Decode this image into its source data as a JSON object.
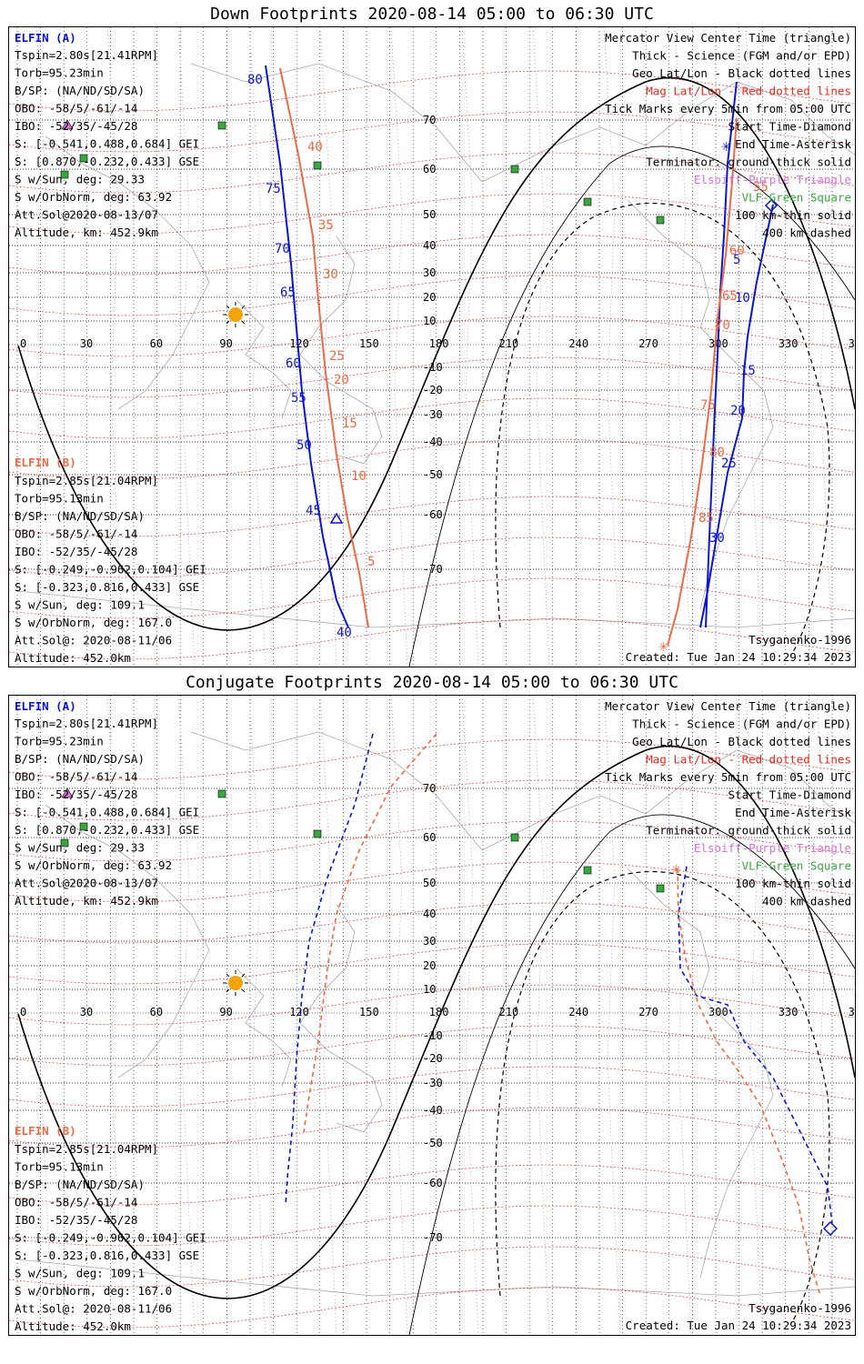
{
  "panels": [
    {
      "title": "Down Footprints 2020-08-14 05:00 to 06:30 UTC",
      "elfin_a": {
        "header": "ELFIN (A)",
        "lines": [
          "Tspin=2.80s[21.41RPM]",
          "Torb=95.23min",
          "B/SP: (NA/ND/SD/SA)",
          "OBO: -58/5/-61/-14",
          "IBO: -52/35/-45/28",
          "S: [-0.541,0.488,0.684] GEI",
          "S: [0.870,-0.232,0.433] GSE",
          "S w/Sun, deg: 29.33",
          "S w/OrbNorm, deg: 63.92",
          "Att.Sol@2020-08-13/07",
          "Altitude, km: 452.9km"
        ]
      },
      "elfin_b": {
        "header": "ELFIN (B)",
        "lines": [
          "Tspin=2.85s[21.04RPM]",
          "Torb=95.13min",
          "B/SP: (NA/ND/SD/SA)",
          "OBO: -58/5/-61/-14",
          "IBO: -52/35/-45/28",
          "S: [-0.249,-0.962,0.104] GEI",
          "S: [-0.323,0.816,0.433] GSE",
          "S w/Sun, deg: 109.1",
          "S w/OrbNorm, deg: 167.0",
          "Att.Sol@: 2020-08-11/06",
          "Altitude: 452.0km"
        ]
      },
      "legend": [
        {
          "text": "Mercator View Center Time (triangle)",
          "color": "#000000"
        },
        {
          "text": "Thick - Science (FGM and/or EPD)",
          "color": "#000000"
        },
        {
          "text": "Geo Lat/Lon - Black dotted lines",
          "color": "#000000"
        },
        {
          "text": "Mag Lat/Lon - Red dotted lines",
          "color": "#e8291c"
        },
        {
          "text": "Tick Marks every 5min from 05:00 UTC",
          "color": "#000000"
        },
        {
          "text": "Start Time-Diamond",
          "color": "#000000"
        },
        {
          "text": "End Time-Asterisk",
          "color": "#000000"
        },
        {
          "text": "Terminator: ground-thick solid",
          "color": "#000000"
        },
        {
          "text": "Elsoiff-Purple Triangle",
          "color": "#d670d6"
        },
        {
          "text": "VLF-Green Square",
          "color": "#3aa640"
        },
        {
          "text": "100 km-thin solid",
          "color": "#000000"
        },
        {
          "text": "400 km-dashed",
          "color": "#000000"
        }
      ],
      "model": "Tsyganenko-1996",
      "created": "Created: Tue Jan 24 10:29:34 2023",
      "lon_ticks": [
        "0",
        "30",
        "60",
        "90",
        "120",
        "150",
        "180",
        "210",
        "240",
        "270",
        "300",
        "330",
        "360"
      ],
      "lat_ticks": [
        "70",
        "60",
        "50",
        "40",
        "30",
        "20",
        "10",
        "-10",
        "-20",
        "-30",
        "-40",
        "-50",
        "-60",
        "-70"
      ],
      "track_a_labels": [
        "5",
        "10",
        "15",
        "20",
        "25",
        "30"
      ],
      "track_a_labels_mag": [
        "80",
        "75",
        "70",
        "65",
        "60",
        "55",
        "50",
        "45",
        "40"
      ],
      "track_b_labels": [
        "40",
        "35",
        "30",
        "25",
        "20",
        "15",
        "10",
        "5"
      ],
      "track_b_labels_b": [
        "55",
        "60",
        "65",
        "70",
        "75",
        "80",
        "85"
      ]
    },
    {
      "title": "Conjugate Footprints 2020-08-14 05:00 to 06:30 UTC",
      "elfin_a": {
        "header": "ELFIN (A)",
        "lines": [
          "Tspin=2.80s[21.41RPM]",
          "Torb=95.23min",
          "B/SP: (NA/ND/SD/SA)",
          "OBO: -58/5/-61/-14",
          "IBO: -52/35/-45/28",
          "S: [-0.541,0.488,0.684] GEI",
          "S: [0.870,-0.232,0.433] GSE",
          "S w/Sun, deg: 29.33",
          "S w/OrbNorm, deg: 63.92",
          "Att.Sol@2020-08-13/07",
          "Altitude, km: 452.9km"
        ]
      },
      "elfin_b": {
        "header": "ELFIN (B)",
        "lines": [
          "Tspin=2.85s[21.04RPM]",
          "Torb=95.13min",
          "B/SP: (NA/ND/SD/SA)",
          "OBO: -58/5/-61/-14",
          "IBO: -52/35/-45/28",
          "S: [-0.249,-0.962,0.104] GEI",
          "S: [-0.323,0.816,0.433] GSE",
          "S w/Sun, deg: 109.1",
          "S w/OrbNorm, deg: 167.0",
          "Att.Sol@: 2020-08-11/06",
          "Altitude: 452.0km"
        ]
      },
      "legend": [
        {
          "text": "Mercator View Center Time (triangle)",
          "color": "#000000"
        },
        {
          "text": "Thick - Science (FGM and/or EPD)",
          "color": "#000000"
        },
        {
          "text": "Geo Lat/Lon - Black dotted lines",
          "color": "#000000"
        },
        {
          "text": "Mag Lat/Lon - Red dotted lines",
          "color": "#e8291c"
        },
        {
          "text": "Tick Marks every 5min from 05:00 UTC",
          "color": "#000000"
        },
        {
          "text": "Start Time-Diamond",
          "color": "#000000"
        },
        {
          "text": "End Time-Asterisk",
          "color": "#000000"
        },
        {
          "text": "Terminator: ground-thick solid",
          "color": "#000000"
        },
        {
          "text": "Elsoiff-Purple Triangle",
          "color": "#d670d6"
        },
        {
          "text": "VLF-Green Square",
          "color": "#3aa640"
        },
        {
          "text": "100 km-thin solid",
          "color": "#000000"
        },
        {
          "text": "400 km-dashed",
          "color": "#000000"
        }
      ],
      "model": "Tsyganenko-1996",
      "created": "Created: Tue Jan 24 10:29:34 2023",
      "lon_ticks": [
        "0",
        "30",
        "60",
        "90",
        "120",
        "150",
        "180",
        "210",
        "240",
        "270",
        "300",
        "330",
        "360"
      ],
      "lat_ticks": [
        "70",
        "60",
        "50",
        "40",
        "30",
        "20",
        "10",
        "-10",
        "-20",
        "-30",
        "-40",
        "-50",
        "-60",
        "-70"
      ]
    }
  ],
  "colors": {
    "elfin_a": "#0a14d4",
    "elfin_b": "#ec6a46",
    "mag_grid": "#e8291c",
    "geo_grid": "#000000",
    "elsoiff": "#d670d6",
    "vlf": "#3aa640",
    "sun": "#f5a30a",
    "coast": "#a8a8a8"
  }
}
